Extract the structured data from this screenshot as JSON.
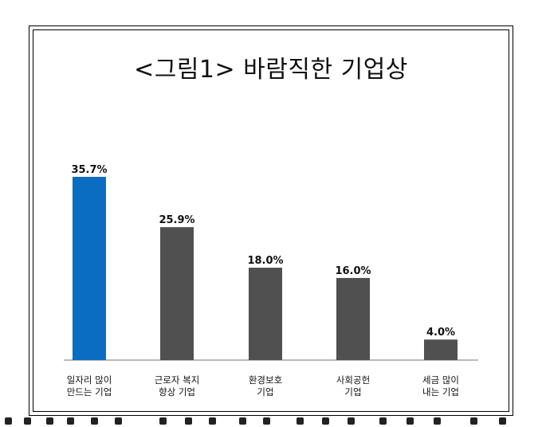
{
  "title": "<그림1> 바람직한 기업상",
  "chart_data": {
    "type": "bar",
    "categories": [
      [
        "일자리 많이",
        "만드는 기업"
      ],
      [
        "근로자 복지",
        "향상 기업"
      ],
      [
        "환경보호",
        "기업"
      ],
      [
        "사회공헌",
        "기업"
      ],
      [
        "세금 많이",
        "내는 기업"
      ]
    ],
    "values": [
      35.7,
      25.9,
      18.0,
      16.0,
      4.0
    ],
    "value_labels": [
      "35.7%",
      "25.9%",
      "18.0%",
      "16.0%",
      "4.0%"
    ],
    "unit": "%",
    "ylim": [
      0,
      40
    ],
    "colors": [
      "#0B6DC2",
      "#505050",
      "#505050",
      "#505050",
      "#505050"
    ],
    "grid": false,
    "legend": "none"
  }
}
